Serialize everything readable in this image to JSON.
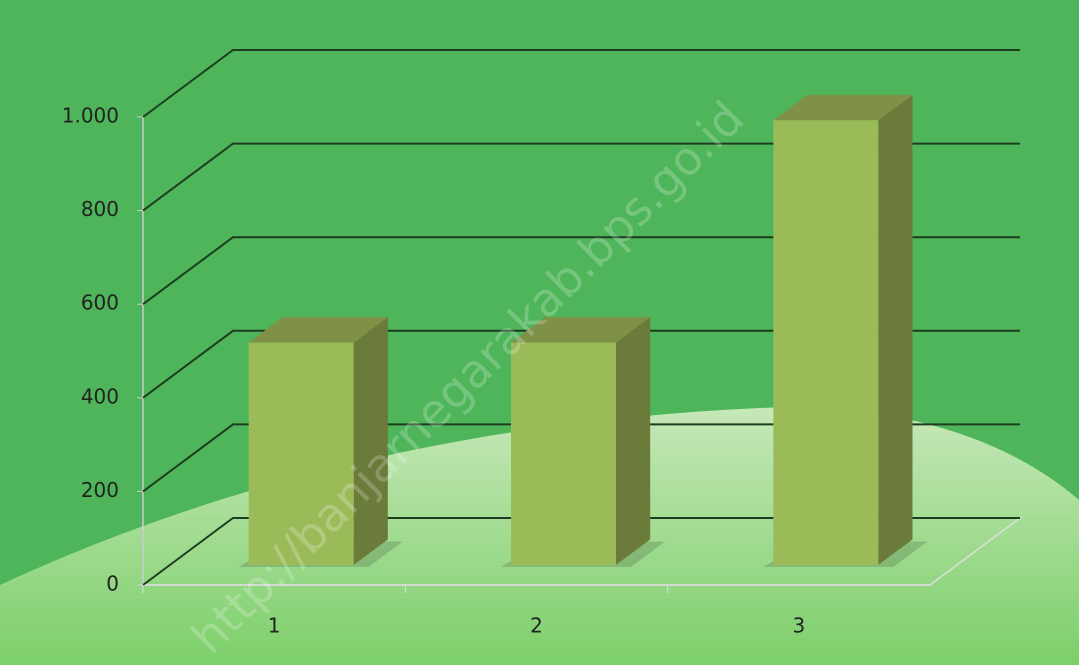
{
  "chart_data": {
    "type": "bar3d",
    "categories": [
      "1",
      "2",
      "3"
    ],
    "values": [
      475,
      475,
      950
    ],
    "color": "#9bbb59",
    "ylim": [
      0,
      1000
    ],
    "yticks": [
      0,
      200,
      400,
      600,
      800,
      {
        "value": 1000,
        "label": "1.000"
      }
    ],
    "grid": true,
    "annotation": "http://banjarnegarakab.bps.go.id"
  }
}
